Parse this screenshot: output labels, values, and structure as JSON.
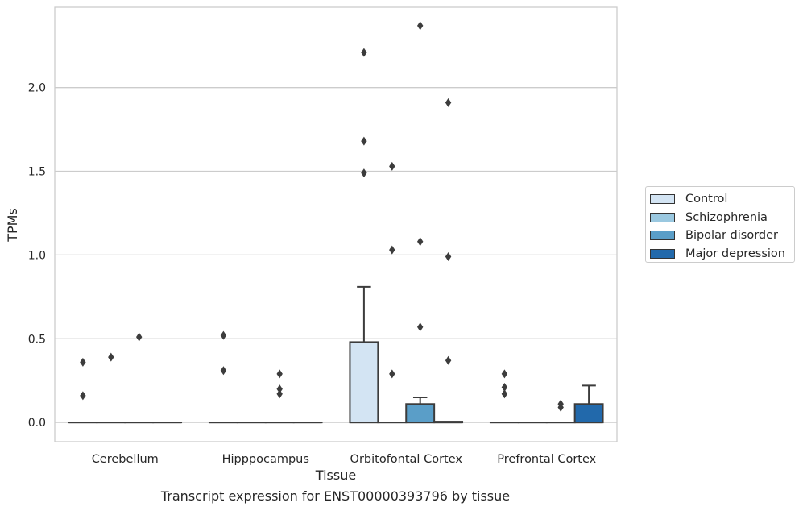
{
  "caption": "Transcript expression for ENST00000393796 by tissue",
  "chart_data": {
    "type": "boxplot",
    "xlabel": "Tissue",
    "ylabel": "TPMs",
    "ylim": [
      -0.115,
      2.48
    ],
    "yticks": [
      "0.0",
      "0.5",
      "1.0",
      "1.5",
      "2.0"
    ],
    "ytick_values": [
      0,
      0.5,
      1.0,
      1.5,
      2.0
    ],
    "grid": "horizontal",
    "legend_position": "right",
    "categories": [
      "Cerebellum",
      "Hipppocampus",
      "Orbitofontal Cortex",
      "Prefrontal Cortex"
    ],
    "series": [
      {
        "name": "Control",
        "color": "#d3e4f3",
        "boxes": [
          {
            "q1": 0,
            "median": 0,
            "q3": 0,
            "whisker_low": 0,
            "whisker_high": 0,
            "outliers": [
              0.36,
              0.16
            ]
          },
          {
            "q1": 0,
            "median": 0,
            "q3": 0,
            "whisker_low": 0,
            "whisker_high": 0,
            "outliers": [
              0.52,
              0.31
            ]
          },
          {
            "q1": 0,
            "median": 0,
            "q3": 0.48,
            "whisker_low": 0,
            "whisker_high": 0.81,
            "outliers": [
              2.21,
              1.68,
              1.49
            ]
          },
          {
            "q1": 0,
            "median": 0,
            "q3": 0,
            "whisker_low": 0,
            "whisker_high": 0,
            "outliers": [
              0.29,
              0.21,
              0.17
            ]
          }
        ]
      },
      {
        "name": "Schizophrenia",
        "color": "#9ac8e0",
        "boxes": [
          {
            "q1": 0,
            "median": 0,
            "q3": 0,
            "whisker_low": 0,
            "whisker_high": 0,
            "outliers": [
              0.39
            ]
          },
          {
            "q1": 0,
            "median": 0,
            "q3": 0,
            "whisker_low": 0,
            "whisker_high": 0,
            "outliers": []
          },
          {
            "q1": 0,
            "median": 0,
            "q3": 0,
            "whisker_low": 0,
            "whisker_high": 0,
            "outliers": [
              1.53,
              1.03,
              0.29
            ]
          },
          {
            "q1": 0,
            "median": 0,
            "q3": 0,
            "whisker_low": 0,
            "whisker_high": 0,
            "outliers": []
          }
        ]
      },
      {
        "name": "Bipolar disorder",
        "color": "#5a9ec8",
        "boxes": [
          {
            "q1": 0,
            "median": 0,
            "q3": 0,
            "whisker_low": 0,
            "whisker_high": 0,
            "outliers": [
              0.51
            ]
          },
          {
            "q1": 0,
            "median": 0,
            "q3": 0,
            "whisker_low": 0,
            "whisker_high": 0,
            "outliers": [
              0.29,
              0.2,
              0.17
            ]
          },
          {
            "q1": 0,
            "median": 0,
            "q3": 0.11,
            "whisker_low": 0,
            "whisker_high": 0.15,
            "outliers": [
              2.37,
              1.08,
              0.57
            ]
          },
          {
            "q1": 0,
            "median": 0,
            "q3": 0,
            "whisker_low": 0,
            "whisker_high": 0,
            "outliers": [
              0.11,
              0.09
            ]
          }
        ]
      },
      {
        "name": "Major depression",
        "color": "#2269ab",
        "boxes": [
          {
            "q1": 0,
            "median": 0,
            "q3": 0,
            "whisker_low": 0,
            "whisker_high": 0,
            "outliers": []
          },
          {
            "q1": 0,
            "median": 0,
            "q3": 0,
            "whisker_low": 0,
            "whisker_high": 0,
            "outliers": []
          },
          {
            "q1": 0,
            "median": 0,
            "q3": 0.005,
            "whisker_low": 0,
            "whisker_high": 0.005,
            "outliers": [
              1.91,
              0.99,
              0.37
            ]
          },
          {
            "q1": 0,
            "median": 0,
            "q3": 0.11,
            "whisker_low": 0,
            "whisker_high": 0.22,
            "outliers": []
          }
        ]
      }
    ]
  }
}
